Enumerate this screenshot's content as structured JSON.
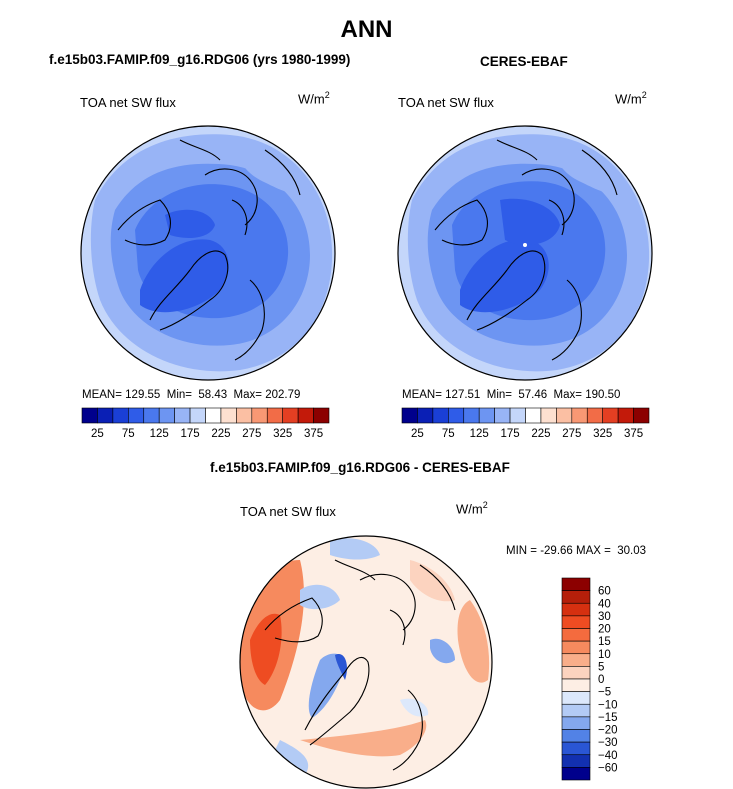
{
  "page": {
    "title": "ANN"
  },
  "panels": {
    "left": {
      "title": "f.e15b03.FAMIP.f09_g16.RDG06 (yrs 1980-1999)",
      "variable": "TOA net SW flux",
      "units": "W/m",
      "units_sup": "2",
      "mean_label": "MEAN=",
      "mean": "129.55",
      "min_label": "Min=",
      "min": "58.43",
      "max_label": "Max=",
      "max": "202.79"
    },
    "right": {
      "title": "CERES-EBAF",
      "variable": "TOA net SW flux",
      "units": "W/m",
      "units_sup": "2",
      "mean_label": "MEAN=",
      "mean": "127.51",
      "min_label": "Min=",
      "min": "57.46",
      "max_label": "Max=",
      "max": "190.50"
    },
    "diff": {
      "title": "f.e15b03.FAMIP.f09_g16.RDG06 - CERES-EBAF",
      "variable": "TOA net SW flux",
      "units": "W/m",
      "units_sup": "2",
      "min_label": "MIN =",
      "min": "-29.66",
      "max_label": "MAX =",
      "max": "30.03"
    }
  },
  "chart_data": [
    {
      "type": "heatmap",
      "projection": "north polar stereographic",
      "title": "TOA net SW flux",
      "units": "W/m2",
      "colorbar": {
        "orientation": "horizontal",
        "tick_labels": [
          "25",
          "75",
          "125",
          "175",
          "225",
          "275",
          "325",
          "375"
        ],
        "levels": [
          25,
          50,
          75,
          100,
          125,
          150,
          175,
          200,
          225,
          250,
          275,
          300,
          325,
          350,
          375
        ],
        "colors": [
          "#00008c",
          "#0a1fb5",
          "#1a3fd6",
          "#2f5ce8",
          "#4a78ee",
          "#6d95f2",
          "#98b4f6",
          "#c4d6fa",
          "#ffffff",
          "#fde0d0",
          "#fbbfa3",
          "#f89874",
          "#f26c47",
          "#e43f22",
          "#c31a0a",
          "#8c0000"
        ]
      },
      "stats": {
        "mean": 129.55,
        "min": 58.43,
        "max": 202.79
      }
    },
    {
      "type": "heatmap",
      "projection": "north polar stereographic",
      "title": "TOA net SW flux",
      "units": "W/m2",
      "colorbar": {
        "orientation": "horizontal",
        "tick_labels": [
          "25",
          "75",
          "125",
          "175",
          "225",
          "275",
          "325",
          "375"
        ],
        "levels": [
          25,
          50,
          75,
          100,
          125,
          150,
          175,
          200,
          225,
          250,
          275,
          300,
          325,
          350,
          375
        ]
      },
      "stats": {
        "mean": 127.51,
        "min": 57.46,
        "max": 190.5
      }
    },
    {
      "type": "heatmap",
      "projection": "north polar stereographic",
      "title": "TOA net SW flux",
      "units": "W/m2",
      "colorbar": {
        "orientation": "vertical",
        "tick_labels": [
          "60",
          "40",
          "30",
          "20",
          "15",
          "10",
          "5",
          "0",
          "−5",
          "−10",
          "−15",
          "−20",
          "−30",
          "−40",
          "−60"
        ],
        "levels": [
          60,
          40,
          30,
          20,
          15,
          10,
          5,
          0,
          -5,
          -10,
          -15,
          -20,
          -30,
          -40,
          -60
        ],
        "colors_top_to_bottom": [
          "#8c0000",
          "#b51f0a",
          "#d63010",
          "#ee4c22",
          "#f46b3e",
          "#f68a5e",
          "#f9ae8a",
          "#fcd3bf",
          "#fdeee4",
          "#dce8fb",
          "#b3cbf5",
          "#84a8ee",
          "#5282e6",
          "#2a56d4",
          "#1230b0",
          "#00008c"
        ]
      },
      "stats": {
        "min": -29.66,
        "max": 30.03
      }
    }
  ]
}
